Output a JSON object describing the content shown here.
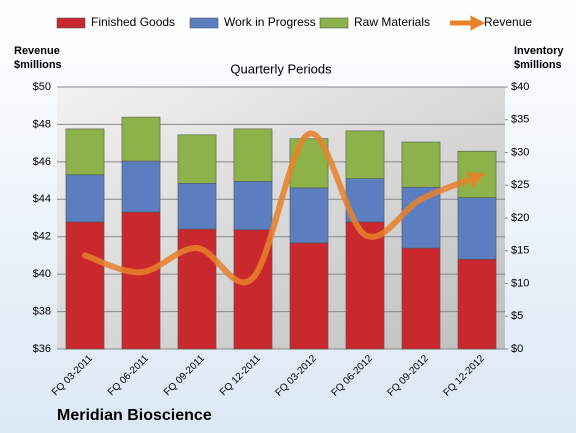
{
  "chart_data": {
    "type": "bar",
    "stacked": true,
    "title": "Quarterly Periods",
    "footer": "Meridian Bioscience",
    "y_label": "Revenue\n$millions",
    "y2_label": "Inventory\n$millions",
    "categories": [
      "FQ 03-2011",
      "FQ 06-2011",
      "FQ 09-2011",
      "FQ 12-2011",
      "FQ 03-2012",
      "FQ 06-2012",
      "FQ 09-2012",
      "FQ 12-2012"
    ],
    "series": [
      {
        "name": "Finished Goods",
        "color": "#c8282e",
        "axis": "y2",
        "values": [
          19.4,
          20.9,
          18.3,
          18.2,
          16.2,
          19.4,
          15.4,
          13.7
        ]
      },
      {
        "name": "Work in Progress",
        "color": "#5a7ebf",
        "axis": "y2",
        "values": [
          7.2,
          7.8,
          7.0,
          7.4,
          8.4,
          6.6,
          9.3,
          9.4
        ]
      },
      {
        "name": "Raw Materials",
        "color": "#8db24a",
        "axis": "y2",
        "values": [
          7.0,
          6.7,
          7.4,
          8.0,
          7.5,
          7.3,
          6.9,
          7.1
        ]
      },
      {
        "name": "Revenue",
        "color": "#e8822a",
        "type": "line",
        "axis": "y",
        "values": [
          41.0,
          40.1,
          41.4,
          39.8,
          47.5,
          42.1,
          44.0,
          45.2
        ]
      }
    ],
    "ylim": [
      36,
      50
    ],
    "yticks": [
      {
        "value": 36,
        "label": "$36"
      },
      {
        "value": 38,
        "label": "$38"
      },
      {
        "value": 40,
        "label": "$40"
      },
      {
        "value": 42,
        "label": "$42"
      },
      {
        "value": 44,
        "label": "$44"
      },
      {
        "value": 46,
        "label": "$46"
      },
      {
        "value": 48,
        "label": "$48"
      },
      {
        "value": 50,
        "label": "$50"
      }
    ],
    "y2lim": [
      0,
      40
    ],
    "y2ticks": [
      {
        "value": 0,
        "label": "$0"
      },
      {
        "value": 5,
        "label": "$5"
      },
      {
        "value": 10,
        "label": "$10"
      },
      {
        "value": 15,
        "label": "$15"
      },
      {
        "value": 20,
        "label": "$20"
      },
      {
        "value": 25,
        "label": "$25"
      },
      {
        "value": 30,
        "label": "$30"
      },
      {
        "value": 35,
        "label": "$35"
      },
      {
        "value": 40,
        "label": "$40"
      }
    ],
    "grid": true,
    "legend": "top"
  }
}
